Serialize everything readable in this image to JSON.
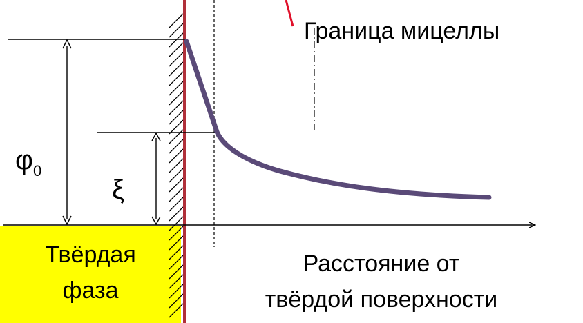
{
  "labels": {
    "micelle_boundary": "Граница мицеллы",
    "phi0_symbol": "φ",
    "phi0_subscript": "0",
    "xi": "ξ",
    "solid_phase_line1": "Твёрдая",
    "solid_phase_line2": "фаза",
    "distance_line1": "Расстояние от",
    "distance_line2": "твёрдой поверхности"
  },
  "colors": {
    "curve": "#5a4a78",
    "surface_line": "#b0303a",
    "solid_phase_fill": "#ffff00",
    "micelle_marker": "#e0102a",
    "lines": "#000000"
  }
}
